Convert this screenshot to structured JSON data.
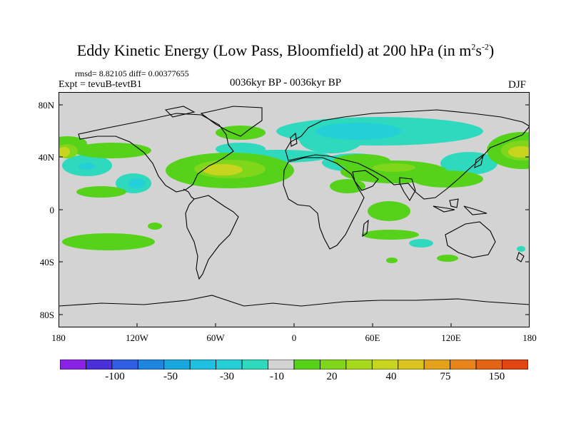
{
  "title": "Eddy Kinetic Energy (Low Pass, Bloomfield) at 200 hPa (in m",
  "title_units": {
    "sup1": "2",
    "mid": "s",
    "sup2": "-2",
    "end": ")"
  },
  "subtitle": {
    "stats": "rmsd= 8.82105 diff= 0.00377655",
    "experiment": "Expt = tevuB-tevtB1",
    "period": "0036kyr BP - 0036kyr BP",
    "season": "DJF"
  },
  "map": {
    "projection": "cylindrical equidistant",
    "lon_range": [
      -180,
      180
    ],
    "lat_range": [
      -90,
      90
    ],
    "ocean_land_fill": "#d3d3d3",
    "lat_ticks": [
      "80N",
      "40N",
      "0",
      "40S",
      "80S"
    ],
    "lon_ticks": [
      "180",
      "120W",
      "60W",
      "0",
      "60E",
      "120E",
      "180"
    ]
  },
  "colorbar": {
    "colors": [
      "#8a22e6",
      "#4b2fd8",
      "#2e5fe3",
      "#1f86e0",
      "#19a7df",
      "#1fc0e0",
      "#25cfd8",
      "#2ed9bd",
      "#d3d3d3",
      "#56d21a",
      "#80d61b",
      "#a6d81c",
      "#c8d51e",
      "#dcc21e",
      "#e4a21c",
      "#e88419",
      "#e46416",
      "#e04512"
    ],
    "labels": [
      "-100",
      "-50",
      "-30",
      "-10",
      "20",
      "40",
      "75",
      "150"
    ]
  }
}
